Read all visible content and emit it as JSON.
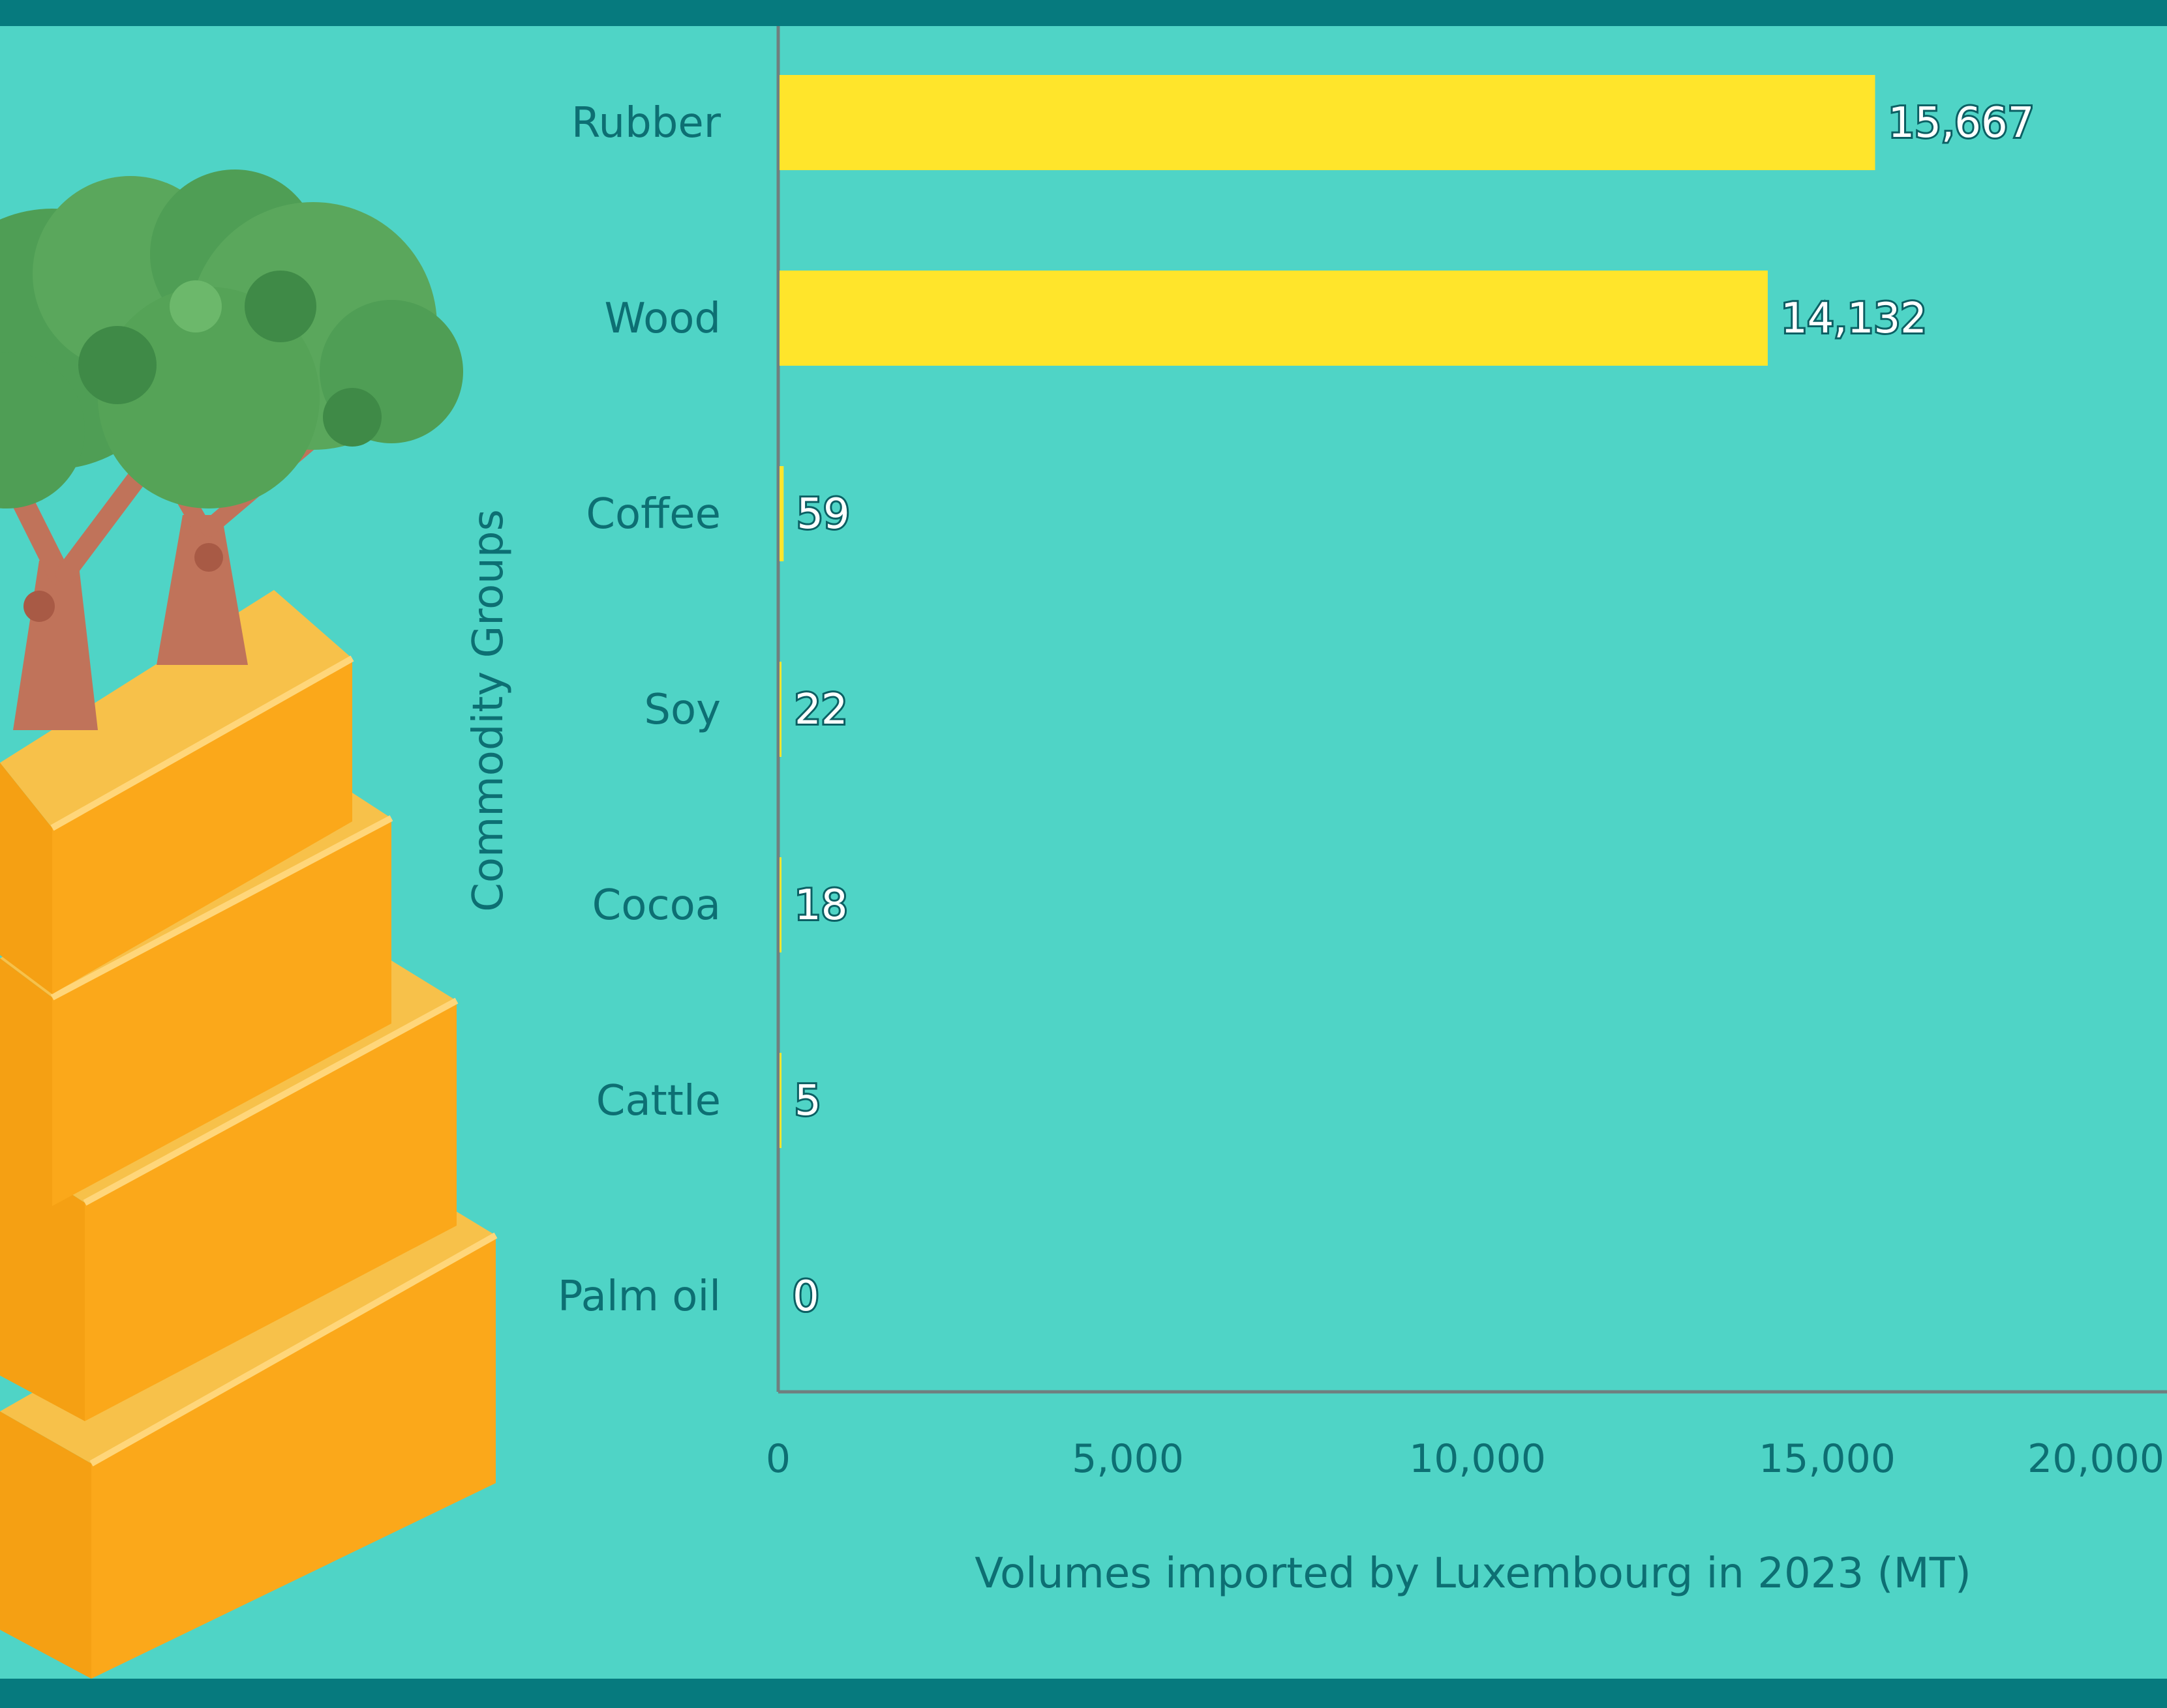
{
  "colors": {
    "background": "#4fd4c6",
    "band": "#067a7e",
    "bar": "#ffe52b",
    "text": "#0d6f73",
    "axis": "#6f7f7f"
  },
  "decoration": {
    "illustration": "tree-on-shipping-containers-icon"
  },
  "chart_data": {
    "type": "bar",
    "orientation": "horizontal",
    "categories": [
      "Rubber",
      "Wood",
      "Coffee",
      "Soy",
      "Cocoa",
      "Cattle",
      "Palm oil"
    ],
    "values": [
      15667,
      14132,
      59,
      22,
      18,
      5,
      0
    ],
    "value_labels": [
      "15,667",
      "14,132",
      "59",
      "22",
      "18",
      "5",
      "0"
    ],
    "xlabel": "Volumes imported by Luxembourg in 2023 (MT)",
    "ylabel": "Commodity Groups",
    "xlim": [
      0,
      20000
    ],
    "xticks": [
      0,
      5000,
      10000,
      15000,
      20000
    ],
    "xtick_labels": [
      "0",
      "5,000",
      "10,000",
      "15,000",
      "20,000"
    ],
    "grid": false,
    "legend": "none"
  }
}
